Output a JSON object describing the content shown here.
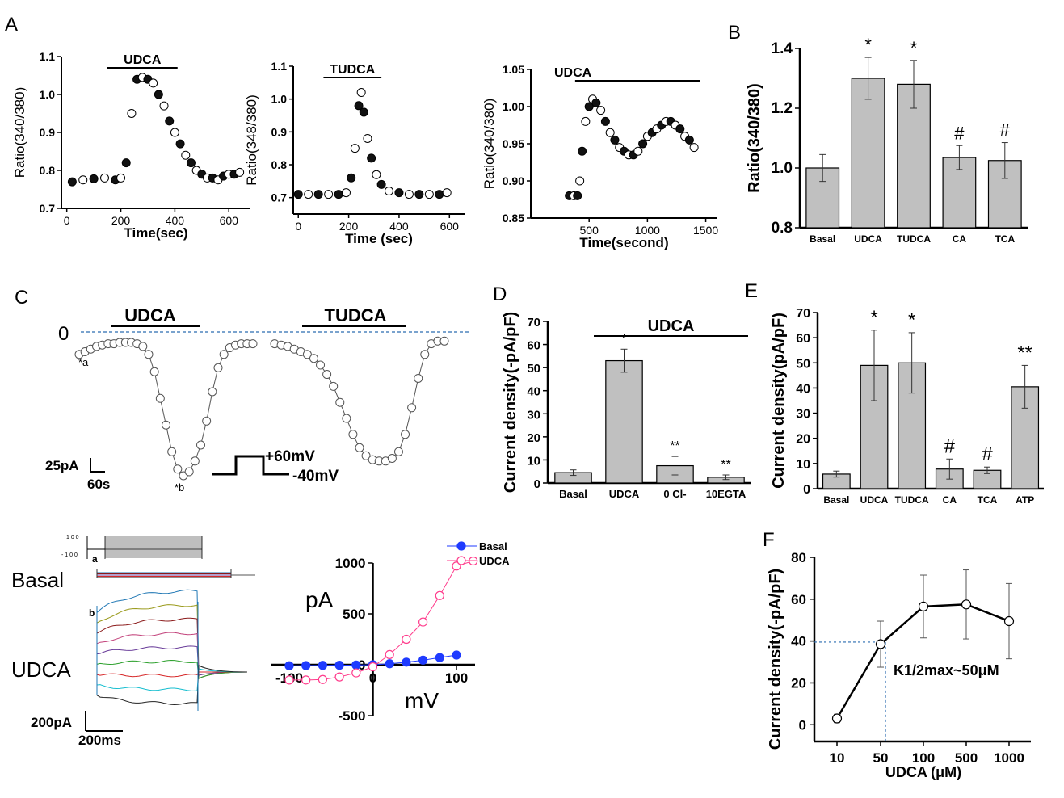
{
  "panel_letters": {
    "A": "A",
    "B": "B",
    "C": "C",
    "D": "D",
    "E": "E",
    "F": "F"
  },
  "chart_data": [
    {
      "id": "A1",
      "type": "scatter",
      "xlabel": "Time(sec)",
      "ylabel": "Ratio(340/380)",
      "xlim": [
        -20,
        680
      ],
      "ylim": [
        0.7,
        1.1
      ],
      "xticks": [
        "0",
        "200",
        "400",
        "600"
      ],
      "yticks": [
        "0.7",
        "0.8",
        "0.9",
        "1.0",
        "1.1"
      ],
      "xtick_values": [
        0,
        200,
        400,
        600
      ],
      "ytick_values": [
        0.7,
        0.8,
        0.9,
        1.0,
        1.1
      ],
      "bar_label": "UDCA",
      "bar_range": [
        150,
        410
      ],
      "x": [
        20,
        60,
        100,
        140,
        180,
        200,
        220,
        240,
        260,
        280,
        300,
        320,
        340,
        360,
        380,
        400,
        420,
        440,
        460,
        480,
        500,
        520,
        540,
        560,
        580,
        600,
        620,
        640
      ],
      "y": [
        0.77,
        0.775,
        0.778,
        0.78,
        0.775,
        0.78,
        0.82,
        0.95,
        1.04,
        1.045,
        1.04,
        1.03,
        1.0,
        0.97,
        0.93,
        0.9,
        0.87,
        0.84,
        0.82,
        0.8,
        0.79,
        0.78,
        0.78,
        0.775,
        0.785,
        0.79,
        0.79,
        0.795
      ]
    },
    {
      "id": "A2",
      "type": "scatter",
      "xlabel": "Time (sec)",
      "ylabel": "Ratio(348/380)",
      "xlim": [
        -20,
        660
      ],
      "ylim": [
        0.65,
        1.1
      ],
      "xticks": [
        "0",
        "200",
        "400",
        "600"
      ],
      "yticks": [
        "0.7",
        "0.8",
        "0.9",
        "1.0",
        "1.1"
      ],
      "xtick_values": [
        0,
        200,
        400,
        600
      ],
      "ytick_values": [
        0.7,
        0.8,
        0.9,
        1.0,
        1.1
      ],
      "bar_label": "TUDCA",
      "bar_range": [
        100,
        330
      ],
      "x": [
        0,
        40,
        80,
        120,
        160,
        190,
        210,
        225,
        240,
        250,
        260,
        275,
        290,
        310,
        330,
        360,
        400,
        440,
        480,
        520,
        560,
        590
      ],
      "y": [
        0.71,
        0.71,
        0.71,
        0.71,
        0.71,
        0.715,
        0.76,
        0.85,
        0.98,
        1.02,
        0.96,
        0.88,
        0.82,
        0.77,
        0.74,
        0.72,
        0.715,
        0.71,
        0.71,
        0.71,
        0.71,
        0.715
      ]
    },
    {
      "id": "A3",
      "type": "scatter",
      "xlabel": "Time(second)",
      "ylabel": "Ratio(340/380)",
      "xlim": [
        0,
        1600
      ],
      "ylim": [
        0.85,
        1.05
      ],
      "xticks": [
        "500",
        "1000",
        "1500"
      ],
      "yticks": [
        "0.85",
        "0.90",
        "0.95",
        "1.00",
        "1.05"
      ],
      "xtick_values": [
        500,
        1000,
        1500
      ],
      "ytick_values": [
        0.85,
        0.9,
        0.95,
        1.0,
        1.05
      ],
      "bar_label": "UDCA",
      "bar_range": [
        380,
        1450
      ],
      "x": [
        330,
        370,
        400,
        420,
        440,
        470,
        500,
        530,
        560,
        600,
        640,
        680,
        720,
        760,
        800,
        840,
        880,
        920,
        960,
        1000,
        1040,
        1080,
        1120,
        1160,
        1200,
        1240,
        1280,
        1320,
        1360,
        1400
      ],
      "y": [
        0.88,
        0.88,
        0.88,
        0.9,
        0.94,
        0.98,
        1.0,
        1.01,
        1.005,
        0.995,
        0.98,
        0.965,
        0.955,
        0.945,
        0.94,
        0.935,
        0.935,
        0.94,
        0.95,
        0.96,
        0.965,
        0.97,
        0.975,
        0.98,
        0.98,
        0.975,
        0.97,
        0.96,
        0.955,
        0.945
      ]
    },
    {
      "id": "B",
      "type": "bar",
      "ylabel": "Ratio(340/380)",
      "categories": [
        "Basal",
        "UDCA",
        "TUDCA",
        "CA",
        "TCA"
      ],
      "values": [
        1.0,
        1.3,
        1.28,
        1.035,
        1.025
      ],
      "errors": [
        0.045,
        0.07,
        0.08,
        0.04,
        0.06
      ],
      "marks": [
        "",
        "*",
        "*",
        "#",
        "#"
      ],
      "ylim": [
        0.8,
        1.4
      ],
      "yticks": [
        "0.8",
        "1.0",
        "1.2",
        "1.4"
      ],
      "ytick_values": [
        0.8,
        1.0,
        1.2,
        1.4
      ]
    },
    {
      "id": "C",
      "type": "scatter",
      "zero_label": "0",
      "labels": {
        "drug1": "UDCA",
        "drug2": "TUDCA",
        "point_a": "*a",
        "point_b": "*b",
        "scale_current": "25pA",
        "scale_time": "60s",
        "step_high": "+60mV",
        "step_low": "-40mV"
      },
      "xlim": [
        0,
        100
      ],
      "ylim": [
        -110,
        5
      ],
      "trace1_x": [
        0,
        2,
        4,
        6,
        8,
        10,
        12,
        14,
        16,
        18,
        20,
        22,
        24,
        26,
        28,
        30,
        32,
        34,
        36,
        38,
        40,
        42,
        44,
        46,
        48,
        50,
        52,
        54,
        56,
        58,
        60
      ],
      "trace1_y": [
        -12,
        -10,
        -8,
        -6,
        -5,
        -4,
        -4,
        -3,
        -3,
        -3,
        -4,
        -6,
        -12,
        -25,
        -45,
        -65,
        -85,
        -98,
        -103,
        -100,
        -92,
        -80,
        -62,
        -40,
        -22,
        -12,
        -7,
        -5,
        -4,
        -4,
        -4
      ],
      "trace2_x": [
        0,
        2,
        4,
        6,
        8,
        10,
        12,
        14,
        16,
        18,
        20,
        22,
        24,
        26,
        28,
        30,
        32,
        34,
        36,
        38,
        40,
        42,
        44,
        46,
        48,
        50,
        52
      ],
      "trace2_y": [
        -4,
        -5,
        -6,
        -8,
        -10,
        -12,
        -15,
        -20,
        -27,
        -36,
        -48,
        -60,
        -72,
        -82,
        -88,
        -91,
        -92,
        -92,
        -90,
        -85,
        -72,
        -52,
        -30,
        -12,
        -4,
        -2,
        -2
      ]
    },
    {
      "id": "C-traces",
      "type": "line",
      "labels": {
        "basal": "Basal",
        "udca": "UDCA",
        "label_a": "a",
        "label_b": "b",
        "scale_current": "200pA",
        "scale_time": "200ms",
        "protocol_top": "1 0 0",
        "protocol_bottom": "- 1 0 0"
      },
      "steady_levels": [
        46,
        38,
        30,
        22,
        14,
        6,
        -2,
        -10,
        -18
      ]
    },
    {
      "id": "C-IV",
      "type": "line",
      "xlabel": "mV",
      "ylabel": "pA",
      "xlim": [
        -115,
        115
      ],
      "ylim": [
        -500,
        1000
      ],
      "xticks": [
        "-100",
        "0",
        "100"
      ],
      "yticks": [
        "-500",
        "0",
        "500",
        "1000"
      ],
      "xtick_values": [
        -100,
        0,
        100
      ],
      "ytick_values": [
        -500,
        0,
        500,
        1000
      ],
      "series": [
        {
          "name": "Basal",
          "color": "#1f3bff",
          "filled": true,
          "x": [
            -100,
            -80,
            -60,
            -40,
            -20,
            0,
            20,
            40,
            60,
            80,
            100
          ],
          "y": [
            -10,
            -8,
            -6,
            -5,
            -3,
            0,
            10,
            25,
            45,
            70,
            95
          ]
        },
        {
          "name": "UDCA",
          "color": "#ff3c8c",
          "filled": false,
          "x": [
            -100,
            -80,
            -60,
            -40,
            -20,
            0,
            20,
            40,
            60,
            80,
            100,
            120
          ],
          "y": [
            -150,
            -150,
            -145,
            -120,
            -80,
            -20,
            100,
            250,
            420,
            680,
            970,
            1020
          ]
        }
      ]
    },
    {
      "id": "D",
      "type": "bar",
      "ylabel": "Current density(-pA/pF)",
      "bar_label": "UDCA",
      "categories": [
        "Basal",
        "UDCA",
        "0 Cl-",
        "10EGTA"
      ],
      "values": [
        4.5,
        53,
        7.5,
        2.5
      ],
      "errors": [
        1.2,
        5,
        4,
        1
      ],
      "marks": [
        "",
        "*",
        "**",
        "**"
      ],
      "ylim": [
        0,
        70
      ],
      "yticks": [
        "0",
        "10",
        "20",
        "30",
        "40",
        "50",
        "60",
        "70"
      ],
      "ytick_values": [
        0,
        10,
        20,
        30,
        40,
        50,
        60,
        70
      ]
    },
    {
      "id": "E",
      "type": "bar",
      "ylabel": "Current density(pA/pF)",
      "categories": [
        "Basal",
        "UDCA",
        "TUDCA",
        "CA",
        "TCA",
        "ATP"
      ],
      "values": [
        5.8,
        49,
        50,
        7.8,
        7.3,
        40.5
      ],
      "errors": [
        1.2,
        14,
        12,
        4,
        1.3,
        8.5
      ],
      "marks": [
        "",
        "*",
        "*",
        "#",
        "#",
        "**"
      ],
      "ylim": [
        0,
        70
      ],
      "yticks": [
        "0",
        "10",
        "20",
        "30",
        "40",
        "50",
        "60",
        "70"
      ],
      "ytick_values": [
        0,
        10,
        20,
        30,
        40,
        50,
        60,
        70
      ]
    },
    {
      "id": "F",
      "type": "line",
      "xlabel": "UDCA (μM)",
      "ylabel": "Current density(-pA/pF)",
      "categories": [
        "10",
        "50",
        "100",
        "500",
        "1000"
      ],
      "values": [
        3,
        38.5,
        56.5,
        57.5,
        49.5
      ],
      "errors": [
        2,
        11,
        15,
        16.5,
        18
      ],
      "annotation": "K1/2max~50μM",
      "guide_y": 39.5,
      "ylim": [
        -8,
        80
      ],
      "yticks": [
        "0",
        "20",
        "40",
        "60",
        "80"
      ],
      "ytick_values": [
        0,
        20,
        40,
        60,
        80
      ]
    }
  ]
}
